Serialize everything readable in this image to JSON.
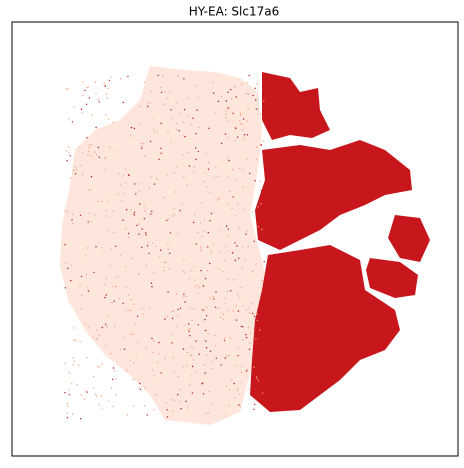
{
  "chart_data": {
    "type": "scatter",
    "title": "HY-EA: Slc17a6"
  }
}
